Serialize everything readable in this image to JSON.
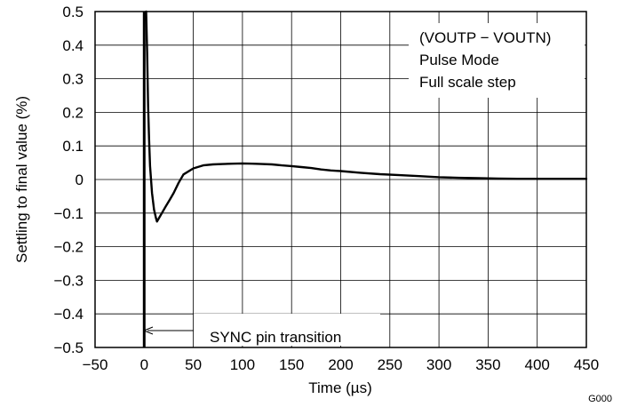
{
  "chart_data": {
    "type": "line",
    "title": "",
    "xlabel": "Time (µs)",
    "ylabel": "Settling to final value (%)",
    "xlim": [
      -50,
      450
    ],
    "ylim": [
      -0.5,
      0.5
    ],
    "x_ticks": [
      -50,
      0,
      50,
      100,
      150,
      200,
      250,
      300,
      350,
      400,
      450
    ],
    "x_tick_labels": [
      "−50",
      "0",
      "50",
      "100",
      "150",
      "200",
      "250",
      "300",
      "350",
      "400",
      "450"
    ],
    "y_ticks": [
      0.5,
      0.4,
      0.3,
      0.2,
      0.1,
      0,
      -0.1,
      -0.2,
      -0.3,
      -0.4,
      -0.5
    ],
    "y_tick_labels": [
      "0.5",
      "0.4",
      "0.3",
      "0.2",
      "0.1",
      "0",
      "−0.1",
      "−0.2",
      "−0.3",
      "−0.4",
      "−0.5"
    ],
    "grid": true,
    "legend_lines": [
      "(VOUTP − VOUTN)",
      "Pulse Mode",
      "Full scale step"
    ],
    "annotation": "SYNC pin transition",
    "figure_id": "G000",
    "series": [
      {
        "x": [
          2,
          3,
          4,
          5,
          6,
          8,
          10,
          12,
          13,
          15,
          18,
          22,
          26,
          30,
          35,
          40,
          50,
          60,
          70,
          80,
          90,
          100,
          110,
          120,
          130,
          140,
          150,
          160,
          170,
          180,
          190,
          200,
          220,
          240,
          260,
          280,
          300,
          320,
          340,
          360,
          380,
          400,
          420,
          440,
          450
        ],
        "y": [
          0.5,
          0.38,
          0.22,
          0.12,
          0.04,
          -0.04,
          -0.09,
          -0.115,
          -0.125,
          -0.115,
          -0.1,
          -0.08,
          -0.06,
          -0.04,
          -0.01,
          0.015,
          0.033,
          0.042,
          0.045,
          0.046,
          0.047,
          0.048,
          0.047,
          0.046,
          0.045,
          0.042,
          0.04,
          0.037,
          0.034,
          0.03,
          0.027,
          0.025,
          0.02,
          0.016,
          0.013,
          0.01,
          0.007,
          0.005,
          0.004,
          0.003,
          0.002,
          0.002,
          0.002,
          0.002,
          0.002
        ]
      }
    ]
  }
}
